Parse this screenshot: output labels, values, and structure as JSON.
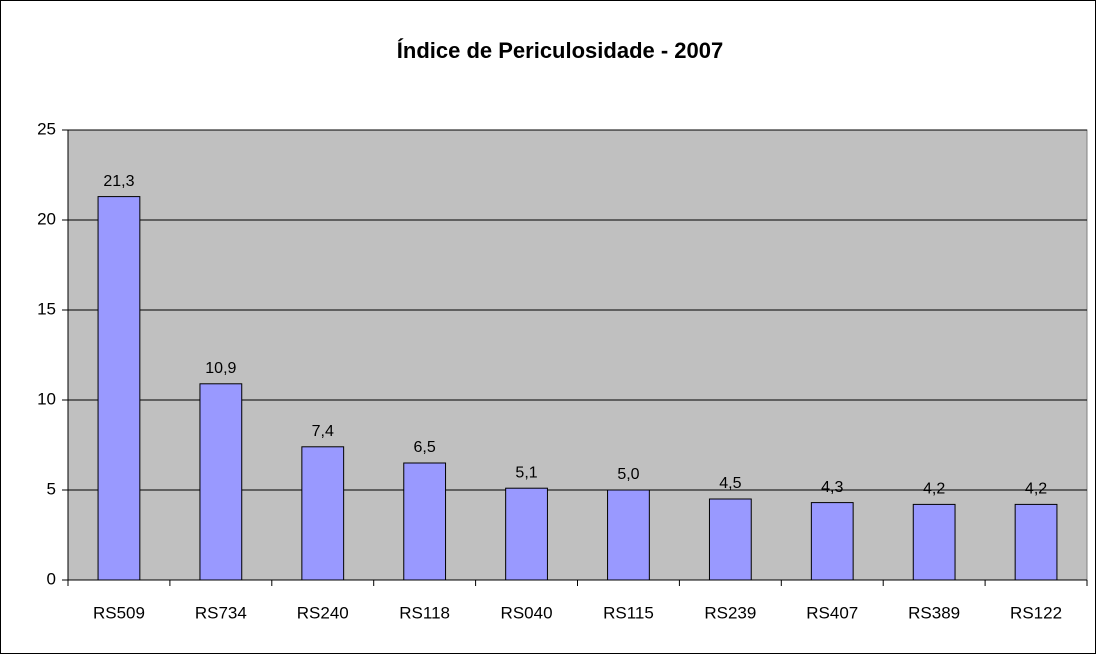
{
  "chart_data": {
    "type": "bar",
    "title": "Índice de Periculosidade - 2007",
    "categories": [
      "RS509",
      "RS734",
      "RS240",
      "RS118",
      "RS040",
      "RS115",
      "RS239",
      "RS407",
      "RS389",
      "RS122"
    ],
    "values": [
      21.3,
      10.9,
      7.4,
      6.5,
      5.1,
      5.0,
      4.5,
      4.3,
      4.2,
      4.2
    ],
    "value_labels": [
      "21,3",
      "10,9",
      "7,4",
      "6,5",
      "5,1",
      "5,0",
      "4,5",
      "4,3",
      "4,2",
      "4,2"
    ],
    "color": "#9999ff",
    "ylim": [
      0,
      25
    ],
    "yticks": [
      0,
      5,
      10,
      15,
      20,
      25
    ],
    "grid": true
  }
}
